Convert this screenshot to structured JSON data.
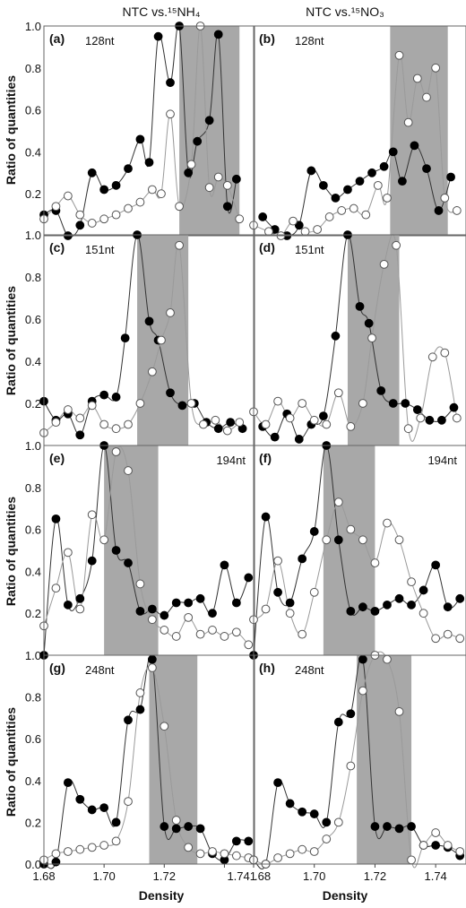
{
  "column_titles": [
    "NTC vs.¹⁵NH₄",
    "NTC vs.¹⁵NO₃"
  ],
  "ylabel": "Ratio of quantities",
  "xlabel": "Density",
  "chart_data": [
    {
      "type": "scatter",
      "panel_label": "(a)",
      "size_label": "128nt",
      "xlim": [
        1.68,
        1.75
      ],
      "ylim": [
        0,
        1.0
      ],
      "shaded": [
        1.725,
        1.745
      ],
      "series": [
        {
          "marker": "filled",
          "x": [
            1.68,
            1.684,
            1.688,
            1.692,
            1.696,
            1.7,
            1.704,
            1.708,
            1.712,
            1.715,
            1.718,
            1.722,
            1.725,
            1.728,
            1.731,
            1.735,
            1.738,
            1.741,
            1.744
          ],
          "y": [
            0.1,
            0.12,
            0.0,
            0.05,
            0.3,
            0.22,
            0.24,
            0.32,
            0.46,
            0.35,
            0.95,
            0.73,
            1.0,
            0.3,
            0.45,
            0.55,
            0.96,
            0.14,
            0.27
          ]
        },
        {
          "marker": "open",
          "x": [
            1.68,
            1.684,
            1.688,
            1.692,
            1.696,
            1.7,
            1.704,
            1.708,
            1.712,
            1.716,
            1.719,
            1.722,
            1.725,
            1.729,
            1.732,
            1.735,
            1.738,
            1.741,
            1.745
          ],
          "y": [
            0.08,
            0.14,
            0.19,
            0.1,
            0.06,
            0.08,
            0.1,
            0.13,
            0.16,
            0.22,
            0.2,
            0.58,
            0.14,
            0.34,
            1.0,
            0.23,
            0.28,
            0.24,
            0.08
          ]
        }
      ]
    },
    {
      "type": "scatter",
      "panel_label": "(b)",
      "size_label": "128nt",
      "xlim": [
        1.68,
        1.75
      ],
      "ylim": [
        0,
        1.0
      ],
      "shaded": [
        1.725,
        1.744
      ],
      "series": [
        {
          "marker": "filled",
          "x": [
            1.683,
            1.687,
            1.691,
            1.695,
            1.699,
            1.703,
            1.707,
            1.711,
            1.715,
            1.719,
            1.723,
            1.726,
            1.729,
            1.733,
            1.737,
            1.741,
            1.745
          ],
          "y": [
            0.09,
            0.03,
            0.0,
            0.05,
            0.31,
            0.24,
            0.18,
            0.22,
            0.26,
            0.3,
            0.33,
            0.4,
            0.26,
            0.43,
            0.32,
            0.12,
            0.28
          ]
        },
        {
          "marker": "open",
          "x": [
            1.68,
            1.685,
            1.689,
            1.693,
            1.697,
            1.701,
            1.705,
            1.709,
            1.713,
            1.717,
            1.721,
            1.724,
            1.728,
            1.731,
            1.734,
            1.737,
            1.74,
            1.743,
            1.747
          ],
          "y": [
            0.05,
            0.02,
            0.0,
            0.07,
            0.02,
            0.03,
            0.09,
            0.12,
            0.13,
            0.1,
            0.24,
            0.18,
            0.86,
            0.54,
            0.75,
            0.66,
            0.8,
            0.18,
            0.12
          ]
        }
      ]
    },
    {
      "type": "scatter",
      "panel_label": "(c)",
      "size_label": "151nt",
      "xlim": [
        1.68,
        1.75
      ],
      "ylim": [
        0,
        1.0
      ],
      "shaded": [
        1.711,
        1.728
      ],
      "series": [
        {
          "marker": "filled",
          "x": [
            1.68,
            1.684,
            1.688,
            1.692,
            1.696,
            1.7,
            1.704,
            1.707,
            1.711,
            1.715,
            1.718,
            1.722,
            1.726,
            1.73,
            1.734,
            1.738,
            1.742,
            1.746
          ],
          "y": [
            0.21,
            0.12,
            0.15,
            0.05,
            0.21,
            0.24,
            0.23,
            0.51,
            1.0,
            0.59,
            0.5,
            0.25,
            0.19,
            0.2,
            0.11,
            0.08,
            0.11,
            0.08
          ]
        },
        {
          "marker": "open",
          "x": [
            1.68,
            1.684,
            1.688,
            1.692,
            1.696,
            1.7,
            1.704,
            1.708,
            1.712,
            1.716,
            1.719,
            1.722,
            1.725,
            1.729,
            1.733,
            1.737,
            1.741,
            1.745
          ],
          "y": [
            0.06,
            0.11,
            0.17,
            0.13,
            0.19,
            0.1,
            0.08,
            0.1,
            0.2,
            0.35,
            0.5,
            0.63,
            0.95,
            0.2,
            0.1,
            0.12,
            0.07,
            0.11
          ]
        }
      ]
    },
    {
      "type": "scatter",
      "panel_label": "(d)",
      "size_label": "151nt",
      "xlim": [
        1.68,
        1.75
      ],
      "ylim": [
        0,
        1.0
      ],
      "shaded": [
        1.711,
        1.728
      ],
      "series": [
        {
          "marker": "filled",
          "x": [
            1.683,
            1.687,
            1.691,
            1.695,
            1.699,
            1.703,
            1.707,
            1.711,
            1.715,
            1.718,
            1.722,
            1.726,
            1.73,
            1.734,
            1.738,
            1.742,
            1.746
          ],
          "y": [
            0.09,
            0.04,
            0.15,
            0.03,
            0.1,
            0.14,
            0.52,
            1.0,
            0.66,
            0.58,
            0.26,
            0.2,
            0.2,
            0.17,
            0.12,
            0.12,
            0.18
          ]
        },
        {
          "marker": "open",
          "x": [
            1.68,
            1.684,
            1.688,
            1.692,
            1.696,
            1.7,
            1.704,
            1.708,
            1.712,
            1.716,
            1.719,
            1.723,
            1.727,
            1.731,
            1.735,
            1.739,
            1.743,
            1.747
          ],
          "y": [
            0.16,
            0.1,
            0.21,
            0.13,
            0.2,
            0.12,
            0.1,
            0.25,
            0.09,
            0.2,
            0.51,
            0.86,
            0.95,
            0.08,
            0.13,
            0.42,
            0.44,
            0.13
          ]
        }
      ]
    },
    {
      "type": "scatter",
      "panel_label": "(e)",
      "size_label": "194nt",
      "xlim": [
        1.68,
        1.75
      ],
      "ylim": [
        0,
        1.0
      ],
      "shaded": [
        1.7,
        1.718
      ],
      "series": [
        {
          "marker": "filled",
          "x": [
            1.68,
            1.684,
            1.688,
            1.692,
            1.696,
            1.7,
            1.704,
            1.708,
            1.712,
            1.716,
            1.72,
            1.724,
            1.728,
            1.732,
            1.736,
            1.74,
            1.744,
            1.748
          ],
          "y": [
            0.0,
            0.65,
            0.24,
            0.27,
            0.45,
            1.0,
            0.5,
            0.44,
            0.21,
            0.22,
            0.19,
            0.25,
            0.25,
            0.27,
            0.2,
            0.43,
            0.25,
            0.37
          ]
        },
        {
          "marker": "open",
          "x": [
            1.68,
            1.684,
            1.688,
            1.692,
            1.696,
            1.7,
            1.704,
            1.708,
            1.712,
            1.716,
            1.72,
            1.724,
            1.728,
            1.732,
            1.736,
            1.74,
            1.744,
            1.748
          ],
          "y": [
            0.14,
            0.32,
            0.49,
            0.22,
            0.67,
            0.55,
            0.97,
            0.88,
            0.34,
            0.17,
            0.12,
            0.09,
            0.18,
            0.1,
            0.12,
            0.09,
            0.11,
            0.05
          ]
        }
      ]
    },
    {
      "type": "scatter",
      "panel_label": "(f)",
      "size_label": "194nt",
      "xlim": [
        1.68,
        1.75
      ],
      "ylim": [
        0,
        1.0
      ],
      "shaded": [
        1.703,
        1.72
      ],
      "series": [
        {
          "marker": "filled",
          "x": [
            1.68,
            1.684,
            1.688,
            1.692,
            1.696,
            1.7,
            1.704,
            1.708,
            1.712,
            1.716,
            1.72,
            1.724,
            1.728,
            1.732,
            1.736,
            1.74,
            1.744,
            1.748
          ],
          "y": [
            0.0,
            0.66,
            0.3,
            0.25,
            0.46,
            0.59,
            1.0,
            0.55,
            0.21,
            0.23,
            0.21,
            0.24,
            0.27,
            0.24,
            0.31,
            0.43,
            0.23,
            0.27
          ]
        },
        {
          "marker": "open",
          "x": [
            1.68,
            1.684,
            1.688,
            1.692,
            1.696,
            1.7,
            1.704,
            1.708,
            1.712,
            1.716,
            1.72,
            1.724,
            1.728,
            1.732,
            1.736,
            1.74,
            1.744,
            1.748
          ],
          "y": [
            0.17,
            0.22,
            0.45,
            0.2,
            0.1,
            0.3,
            0.55,
            0.73,
            0.6,
            0.55,
            0.44,
            0.63,
            0.55,
            0.35,
            0.2,
            0.08,
            0.1,
            0.08
          ]
        }
      ]
    },
    {
      "type": "scatter",
      "panel_label": "(g)",
      "size_label": "248nt",
      "xlim": [
        1.68,
        1.75
      ],
      "ylim": [
        0,
        1.0
      ],
      "shaded": [
        1.715,
        1.731
      ],
      "series": [
        {
          "marker": "filled",
          "x": [
            1.68,
            1.684,
            1.688,
            1.692,
            1.696,
            1.7,
            1.704,
            1.708,
            1.712,
            1.716,
            1.72,
            1.724,
            1.728,
            1.732,
            1.736,
            1.74,
            1.744,
            1.748
          ],
          "y": [
            0.0,
            0.01,
            0.39,
            0.31,
            0.26,
            0.27,
            0.2,
            0.69,
            0.74,
            0.98,
            0.18,
            0.17,
            0.18,
            0.17,
            0.05,
            0.02,
            0.11,
            0.11
          ]
        },
        {
          "marker": "open",
          "x": [
            1.68,
            1.684,
            1.688,
            1.692,
            1.696,
            1.7,
            1.704,
            1.708,
            1.712,
            1.716,
            1.72,
            1.724,
            1.728,
            1.732,
            1.736,
            1.74,
            1.744,
            1.748
          ],
          "y": [
            0.02,
            0.05,
            0.06,
            0.07,
            0.08,
            0.09,
            0.11,
            0.3,
            0.82,
            0.94,
            0.66,
            0.21,
            0.08,
            0.05,
            0.06,
            0.05,
            0.04,
            0.03
          ]
        }
      ]
    },
    {
      "type": "scatter",
      "panel_label": "(h)",
      "size_label": "248nt",
      "xlim": [
        1.68,
        1.75
      ],
      "ylim": [
        0,
        1.0
      ],
      "shaded": [
        1.714,
        1.732
      ],
      "series": [
        {
          "marker": "filled",
          "x": [
            1.68,
            1.684,
            1.688,
            1.692,
            1.696,
            1.7,
            1.704,
            1.708,
            1.712,
            1.716,
            1.72,
            1.724,
            1.728,
            1.732,
            1.736,
            1.74,
            1.744,
            1.748
          ],
          "y": [
            0.02,
            0.0,
            0.39,
            0.29,
            0.25,
            0.24,
            0.2,
            0.68,
            0.72,
            0.98,
            0.18,
            0.18,
            0.17,
            0.18,
            0.09,
            0.09,
            0.08,
            0.04
          ]
        },
        {
          "marker": "open",
          "x": [
            1.68,
            1.684,
            1.688,
            1.692,
            1.696,
            1.7,
            1.704,
            1.708,
            1.712,
            1.716,
            1.72,
            1.724,
            1.728,
            1.732,
            1.736,
            1.74,
            1.744,
            1.748
          ],
          "y": [
            0.02,
            0.0,
            0.03,
            0.05,
            0.07,
            0.06,
            0.12,
            0.2,
            0.47,
            0.83,
            1.0,
            0.98,
            0.73,
            0.02,
            0.09,
            0.15,
            0.09,
            0.06
          ]
        }
      ]
    }
  ]
}
